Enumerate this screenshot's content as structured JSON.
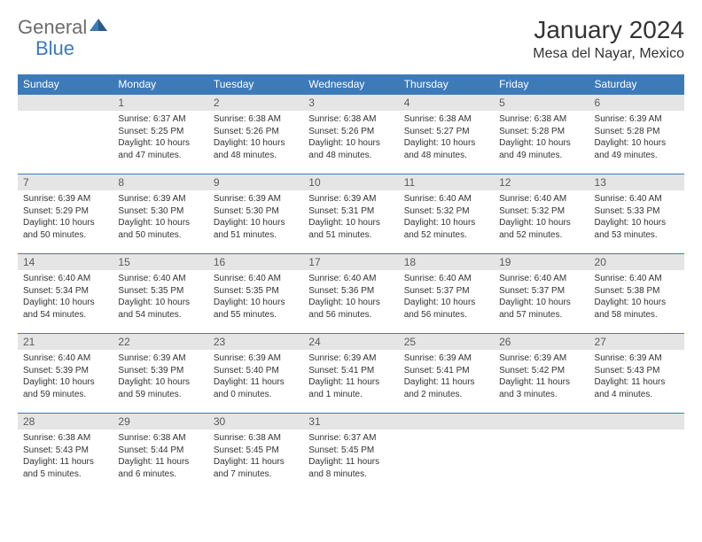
{
  "logo": {
    "part1": "General",
    "part2": "Blue"
  },
  "title": "January 2024",
  "location": "Mesa del Nayar, Mexico",
  "colors": {
    "header_bg": "#3d7bb8",
    "header_text": "#ffffff",
    "daynum_bg": "#e5e5e5",
    "daynum_text": "#5a5a5a",
    "body_text": "#333333",
    "logo_gray": "#6d6d6d",
    "logo_blue": "#3d7bb8",
    "row_border": "#3d7bb8",
    "background": "#ffffff"
  },
  "fonts": {
    "title_size": 28,
    "location_size": 16,
    "header_size": 12,
    "daynum_size": 12,
    "content_size": 10
  },
  "weekdays": [
    "Sunday",
    "Monday",
    "Tuesday",
    "Wednesday",
    "Thursday",
    "Friday",
    "Saturday"
  ],
  "weeks": [
    [
      null,
      {
        "day": 1,
        "sunrise": "6:37 AM",
        "sunset": "5:25 PM",
        "daylight": "10 hours and 47 minutes."
      },
      {
        "day": 2,
        "sunrise": "6:38 AM",
        "sunset": "5:26 PM",
        "daylight": "10 hours and 48 minutes."
      },
      {
        "day": 3,
        "sunrise": "6:38 AM",
        "sunset": "5:26 PM",
        "daylight": "10 hours and 48 minutes."
      },
      {
        "day": 4,
        "sunrise": "6:38 AM",
        "sunset": "5:27 PM",
        "daylight": "10 hours and 48 minutes."
      },
      {
        "day": 5,
        "sunrise": "6:38 AM",
        "sunset": "5:28 PM",
        "daylight": "10 hours and 49 minutes."
      },
      {
        "day": 6,
        "sunrise": "6:39 AM",
        "sunset": "5:28 PM",
        "daylight": "10 hours and 49 minutes."
      }
    ],
    [
      {
        "day": 7,
        "sunrise": "6:39 AM",
        "sunset": "5:29 PM",
        "daylight": "10 hours and 50 minutes."
      },
      {
        "day": 8,
        "sunrise": "6:39 AM",
        "sunset": "5:30 PM",
        "daylight": "10 hours and 50 minutes."
      },
      {
        "day": 9,
        "sunrise": "6:39 AM",
        "sunset": "5:30 PM",
        "daylight": "10 hours and 51 minutes."
      },
      {
        "day": 10,
        "sunrise": "6:39 AM",
        "sunset": "5:31 PM",
        "daylight": "10 hours and 51 minutes."
      },
      {
        "day": 11,
        "sunrise": "6:40 AM",
        "sunset": "5:32 PM",
        "daylight": "10 hours and 52 minutes."
      },
      {
        "day": 12,
        "sunrise": "6:40 AM",
        "sunset": "5:32 PM",
        "daylight": "10 hours and 52 minutes."
      },
      {
        "day": 13,
        "sunrise": "6:40 AM",
        "sunset": "5:33 PM",
        "daylight": "10 hours and 53 minutes."
      }
    ],
    [
      {
        "day": 14,
        "sunrise": "6:40 AM",
        "sunset": "5:34 PM",
        "daylight": "10 hours and 54 minutes."
      },
      {
        "day": 15,
        "sunrise": "6:40 AM",
        "sunset": "5:35 PM",
        "daylight": "10 hours and 54 minutes."
      },
      {
        "day": 16,
        "sunrise": "6:40 AM",
        "sunset": "5:35 PM",
        "daylight": "10 hours and 55 minutes."
      },
      {
        "day": 17,
        "sunrise": "6:40 AM",
        "sunset": "5:36 PM",
        "daylight": "10 hours and 56 minutes."
      },
      {
        "day": 18,
        "sunrise": "6:40 AM",
        "sunset": "5:37 PM",
        "daylight": "10 hours and 56 minutes."
      },
      {
        "day": 19,
        "sunrise": "6:40 AM",
        "sunset": "5:37 PM",
        "daylight": "10 hours and 57 minutes."
      },
      {
        "day": 20,
        "sunrise": "6:40 AM",
        "sunset": "5:38 PM",
        "daylight": "10 hours and 58 minutes."
      }
    ],
    [
      {
        "day": 21,
        "sunrise": "6:40 AM",
        "sunset": "5:39 PM",
        "daylight": "10 hours and 59 minutes."
      },
      {
        "day": 22,
        "sunrise": "6:39 AM",
        "sunset": "5:39 PM",
        "daylight": "10 hours and 59 minutes."
      },
      {
        "day": 23,
        "sunrise": "6:39 AM",
        "sunset": "5:40 PM",
        "daylight": "11 hours and 0 minutes."
      },
      {
        "day": 24,
        "sunrise": "6:39 AM",
        "sunset": "5:41 PM",
        "daylight": "11 hours and 1 minute."
      },
      {
        "day": 25,
        "sunrise": "6:39 AM",
        "sunset": "5:41 PM",
        "daylight": "11 hours and 2 minutes."
      },
      {
        "day": 26,
        "sunrise": "6:39 AM",
        "sunset": "5:42 PM",
        "daylight": "11 hours and 3 minutes."
      },
      {
        "day": 27,
        "sunrise": "6:39 AM",
        "sunset": "5:43 PM",
        "daylight": "11 hours and 4 minutes."
      }
    ],
    [
      {
        "day": 28,
        "sunrise": "6:38 AM",
        "sunset": "5:43 PM",
        "daylight": "11 hours and 5 minutes."
      },
      {
        "day": 29,
        "sunrise": "6:38 AM",
        "sunset": "5:44 PM",
        "daylight": "11 hours and 6 minutes."
      },
      {
        "day": 30,
        "sunrise": "6:38 AM",
        "sunset": "5:45 PM",
        "daylight": "11 hours and 7 minutes."
      },
      {
        "day": 31,
        "sunrise": "6:37 AM",
        "sunset": "5:45 PM",
        "daylight": "11 hours and 8 minutes."
      },
      null,
      null,
      null
    ]
  ],
  "labels": {
    "sunrise": "Sunrise:",
    "sunset": "Sunset:",
    "daylight": "Daylight:"
  }
}
